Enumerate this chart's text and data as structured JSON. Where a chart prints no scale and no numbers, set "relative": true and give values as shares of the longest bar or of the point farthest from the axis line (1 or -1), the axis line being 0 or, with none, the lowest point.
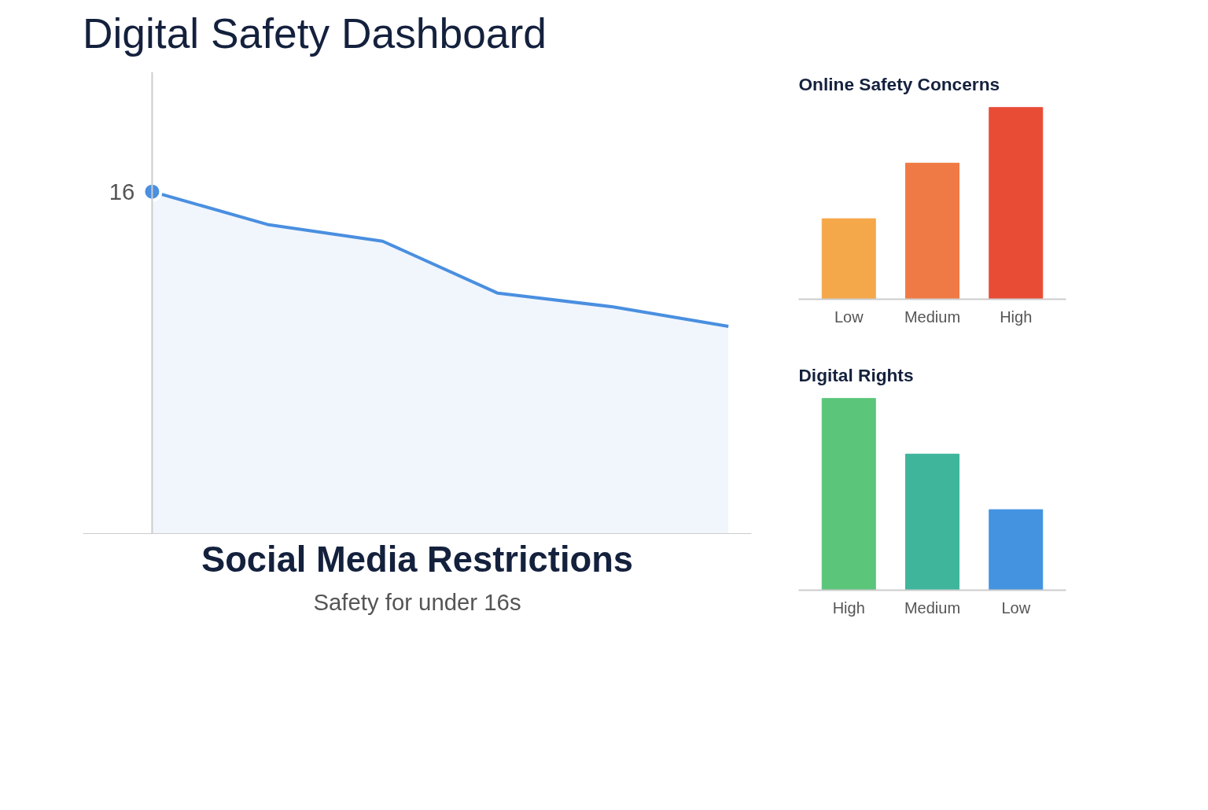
{
  "chart_data": [
    {
      "type": "area",
      "title": "Social Media Restrictions",
      "subtitle": "Safety for under 16s",
      "relative": true,
      "categories": [
        null,
        null,
        null,
        null,
        null,
        null
      ],
      "series": [
        {
          "color": "#4a8fe0",
          "values": [
            1,
            0.904,
            0.855,
            0.703,
            0.663,
            0.606
          ]
        }
      ],
      "marker": "none",
      "annotations": [
        "Digital Safety Dashboard",
        "16"
      ]
    },
    {
      "type": "bar",
      "title": "Online Safety Concerns",
      "relative": true,
      "categories": [
        "Low",
        "Medium",
        "High"
      ],
      "values": [
        0.42,
        0.71,
        1
      ],
      "colors": [
        "#f5a84a",
        "#f07a45",
        "#e84c35"
      ]
    },
    {
      "type": "bar",
      "title": "Digital Rights",
      "relative": true,
      "categories": [
        "High",
        "Medium",
        "Low"
      ],
      "values": [
        1,
        0.71,
        0.42
      ],
      "colors": [
        "#5bc57a",
        "#3fb59c",
        "#4393e0"
      ]
    }
  ]
}
